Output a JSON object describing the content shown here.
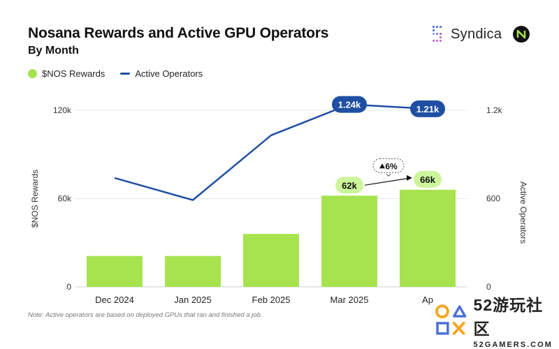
{
  "header": {
    "title": "Nosana Rewards and Active GPU Operators",
    "subtitle": "By Month"
  },
  "legend": {
    "rewards_label": "$NOS Rewards",
    "operators_label": "Active Operators"
  },
  "brand": {
    "name": "Syndica"
  },
  "footnote": "Note: Active operators are based on deployed GPUs that ran and finished a job.",
  "watermark": {
    "cn": "52游玩社区",
    "en": "52GAMERS.COM"
  },
  "colors": {
    "bars": "#a6e34f",
    "line": "#1f4fa3",
    "label_line": "#1f4fa3",
    "label_bar": "#cdf59b"
  },
  "chart_data": {
    "type": "bar",
    "categories": [
      "Dec 2024",
      "Jan 2025",
      "Feb 2025",
      "Mar 2025",
      "Ap"
    ],
    "series": [
      {
        "name": "$NOS Rewards",
        "type": "bar",
        "axis": "left",
        "values": [
          21000,
          21000,
          36000,
          62000,
          66000
        ]
      },
      {
        "name": "Active Operators",
        "type": "line",
        "axis": "right",
        "values": [
          740,
          590,
          1030,
          1240,
          1210
        ]
      }
    ],
    "ylabel": "$NOS Rewards",
    "y2label": "Active Operators",
    "ylim": [
      0,
      120000
    ],
    "y2lim": [
      0,
      1200
    ],
    "yticks": [
      {
        "value": 0,
        "label": "0"
      },
      {
        "value": 60000,
        "label": "60k"
      },
      {
        "value": 120000,
        "label": "120k"
      }
    ],
    "y2ticks": [
      {
        "value": 0,
        "label": "0"
      },
      {
        "value": 600,
        "label": "600"
      },
      {
        "value": 1200,
        "label": "1.2k"
      }
    ],
    "data_labels": {
      "bars": [
        {
          "index": 3,
          "text": "62k"
        },
        {
          "index": 4,
          "text": "66k"
        }
      ],
      "line": [
        {
          "index": 3,
          "text": "1.24k"
        },
        {
          "index": 4,
          "text": "1.21k"
        }
      ]
    },
    "annotation": {
      "from": 3,
      "to": 4,
      "text": "6%"
    },
    "grid": true,
    "legend_position": "top-left"
  }
}
